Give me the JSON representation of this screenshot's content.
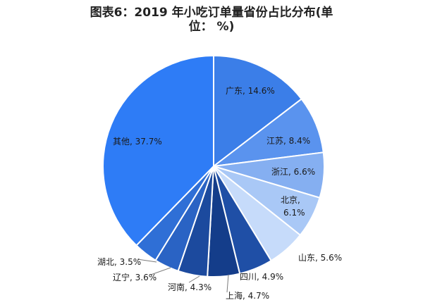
{
  "chart_data": {
    "type": "pie",
    "title_line1": "图表6：2019 年小吃订单量省份占比分布(单",
    "title_line2": "位： %)",
    "slices": [
      {
        "name": "广东",
        "value": 14.6,
        "label": "广东, 14.6%",
        "color": "#3b7ee8"
      },
      {
        "name": "江苏",
        "value": 8.4,
        "label": "江苏, 8.4%",
        "color": "#5a93ee"
      },
      {
        "name": "浙江",
        "value": 6.6,
        "label": "浙江, 6.6%",
        "color": "#85aff1"
      },
      {
        "name": "北京",
        "value": 6.1,
        "label_line1": "北京,",
        "label_line2": "6.1%",
        "color": "#a9c8f6"
      },
      {
        "name": "山东",
        "value": 5.6,
        "label": "山东, 5.6%",
        "color": "#c6dbfa"
      },
      {
        "name": "四川",
        "value": 4.9,
        "label": "四川, 4.9%",
        "color": "#1f4fa6"
      },
      {
        "name": "上海",
        "value": 4.7,
        "label": "上海, 4.7%",
        "color": "#143d8a"
      },
      {
        "name": "河南",
        "value": 4.3,
        "label": "河南, 4.3%",
        "color": "#1c4a9e"
      },
      {
        "name": "辽宁",
        "value": 3.6,
        "label": "辽宁, 3.6%",
        "color": "#2a63c4"
      },
      {
        "name": "湖北",
        "value": 3.5,
        "label": "湖北, 3.5%",
        "color": "#2f6fd6"
      },
      {
        "name": "其他",
        "value": 37.7,
        "label": "其他, 37.7%",
        "color": "#2e7cf6"
      }
    ]
  }
}
